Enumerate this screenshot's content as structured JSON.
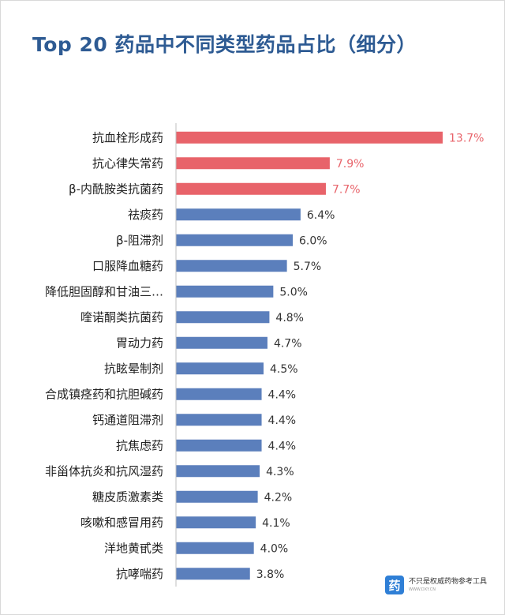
{
  "chart_data": {
    "type": "bar",
    "orientation": "horizontal",
    "title": "Top 20 药品中不同类型药品占比（细分）",
    "categories": [
      "抗血栓形成药",
      "抗心律失常药",
      "β-内酰胺类抗菌药",
      "祛痰药",
      "β-阻滞剂",
      "口服降血糖药",
      "降低胆固醇和甘油三…",
      "喹诺酮类抗菌药",
      "胃动力药",
      "抗眩晕制剂",
      "合成镇痉药和抗胆碱药",
      "钙通道阻滞剂",
      "抗焦虑药",
      "非甾体抗炎和抗风湿药",
      "糖皮质激素类",
      "咳嗽和感冒用药",
      "洋地黄甙类",
      "抗哮喘药"
    ],
    "values": [
      13.7,
      7.9,
      7.7,
      6.4,
      6.0,
      5.7,
      5.0,
      4.8,
      4.7,
      4.5,
      4.4,
      4.4,
      4.4,
      4.3,
      4.2,
      4.1,
      4.0,
      3.8
    ],
    "value_labels": [
      "13.7%",
      "7.9%",
      "7.7%",
      "6.4%",
      "6.0%",
      "5.7%",
      "5.0%",
      "4.8%",
      "4.7%",
      "4.5%",
      "4.4%",
      "4.4%",
      "4.4%",
      "4.3%",
      "4.2%",
      "4.1%",
      "4.0%",
      "3.8%"
    ],
    "highlight_count": 3,
    "xlim": [
      0,
      13.7
    ],
    "grid": false,
    "legend": "none"
  },
  "colors": {
    "highlight": "#e8636a",
    "normal": "#5b7fbc",
    "title": "#2e5b93",
    "label": "#222222",
    "value_normal": "#333333",
    "axis": "#bfbfbf"
  },
  "watermark": {
    "logo_char": "药",
    "name": "不只是权威药物参考工具",
    "url": "WWW.DXY.CN"
  }
}
